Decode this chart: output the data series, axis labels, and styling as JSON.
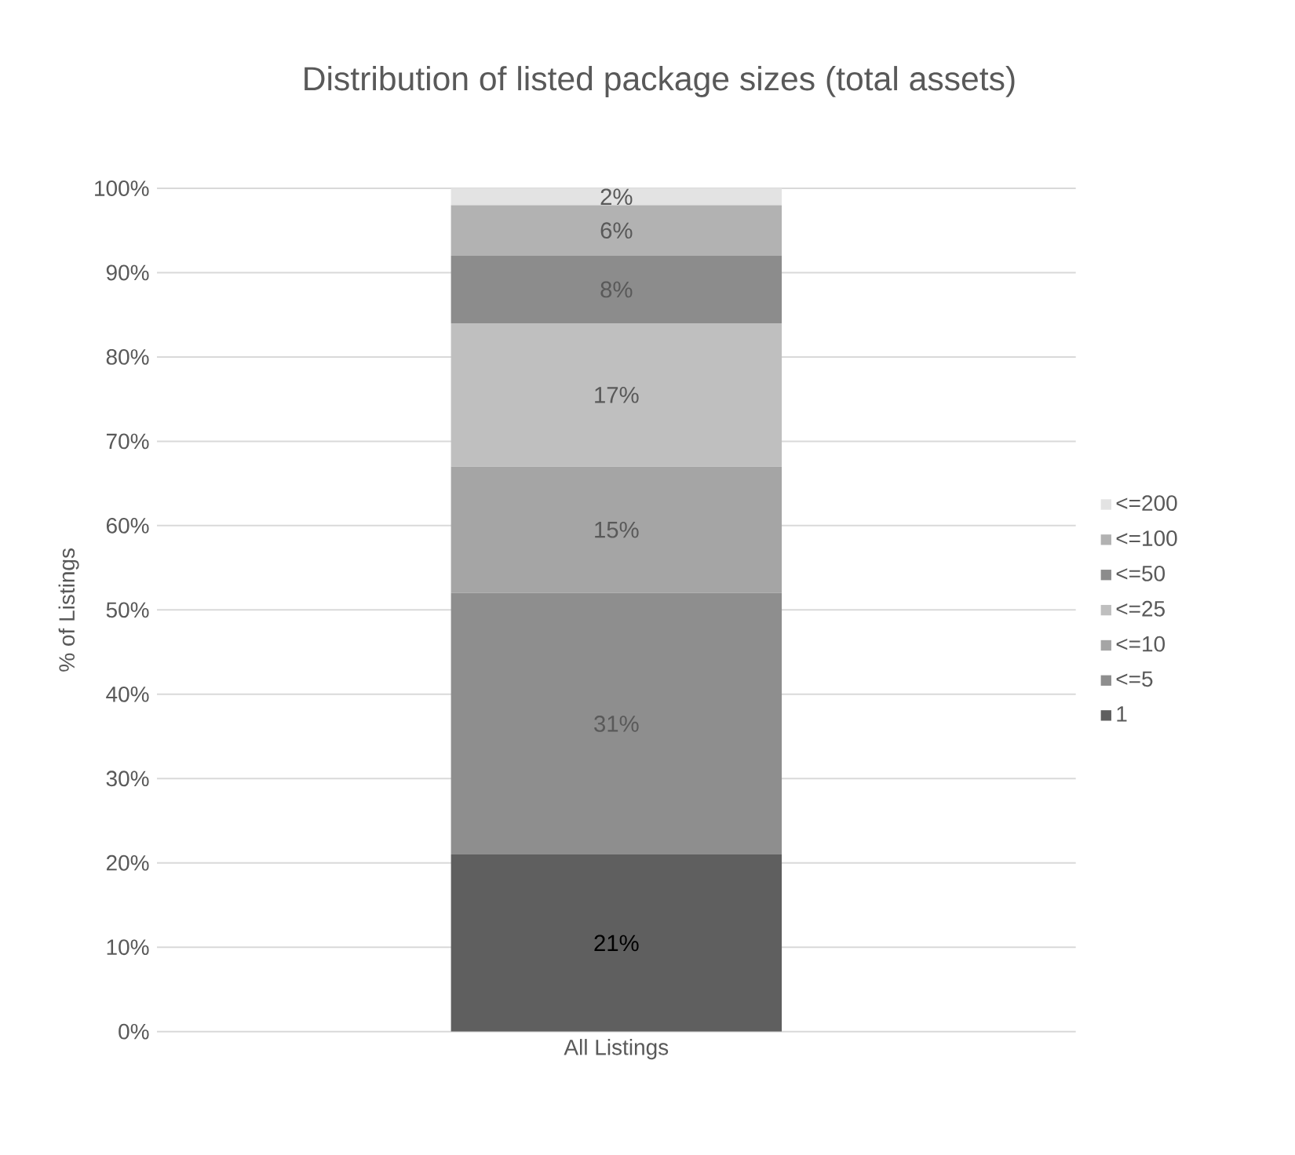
{
  "chart_data": {
    "type": "bar",
    "stacked": true,
    "title": "Distribution of listed package sizes (total assets)",
    "ylabel": "% of Listings",
    "categories": [
      "All Listings"
    ],
    "series": [
      {
        "name": "1",
        "color": "#5f5f5f",
        "values": [
          21
        ],
        "value_labels": [
          "21%"
        ]
      },
      {
        "name": "<=5",
        "color": "#8e8e8e",
        "values": [
          31
        ],
        "value_labels": [
          "31%"
        ]
      },
      {
        "name": "<=10",
        "color": "#a5a5a5",
        "values": [
          15
        ],
        "value_labels": [
          "15%"
        ]
      },
      {
        "name": "<=25",
        "color": "#bfbfbf",
        "values": [
          17
        ],
        "value_labels": [
          "17%"
        ]
      },
      {
        "name": "<=50",
        "color": "#8c8c8c",
        "values": [
          8
        ],
        "value_labels": [
          "8%"
        ]
      },
      {
        "name": "<=100",
        "color": "#b2b2b2",
        "values": [
          6
        ],
        "value_labels": [
          "6%"
        ]
      },
      {
        "name": "<=200",
        "color": "#e3e3e3",
        "values": [
          2
        ],
        "value_labels": [
          "2%"
        ]
      }
    ],
    "ylim": [
      0,
      100
    ],
    "yticks": [
      {
        "value": 0,
        "label": "0%"
      },
      {
        "value": 10,
        "label": "10%"
      },
      {
        "value": 20,
        "label": "20%"
      },
      {
        "value": 30,
        "label": "30%"
      },
      {
        "value": 40,
        "label": "40%"
      },
      {
        "value": 50,
        "label": "50%"
      },
      {
        "value": 60,
        "label": "60%"
      },
      {
        "value": 70,
        "label": "70%"
      },
      {
        "value": 80,
        "label": "80%"
      },
      {
        "value": 90,
        "label": "90%"
      },
      {
        "value": 100,
        "label": "100%"
      }
    ],
    "grid": "y",
    "legend": "right"
  }
}
